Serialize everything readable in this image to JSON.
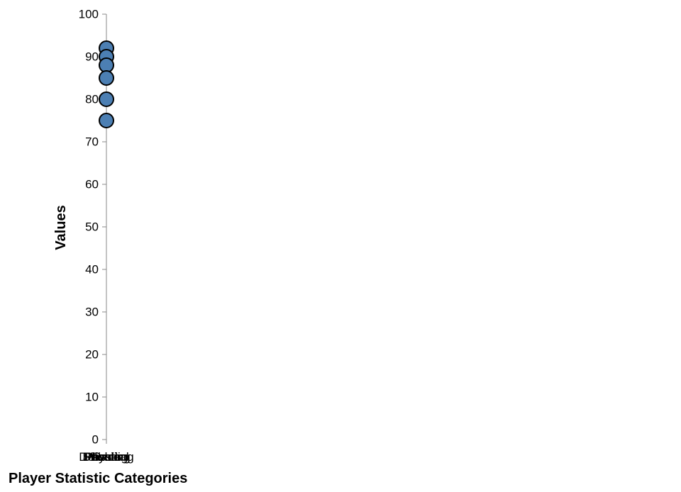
{
  "chart_data": {
    "type": "scatter",
    "title": "",
    "xlabel": "Player Statistic Categories",
    "ylabel": "Values",
    "categories": [
      "Dribbling",
      "Passing",
      "Physical",
      "Shooting",
      "Pace",
      "Defending"
    ],
    "series": [
      {
        "values": [
          {
            "category": "Dribbling",
            "value": 92
          },
          {
            "category": "Passing",
            "value": 90
          },
          {
            "category": "Physical",
            "value": 88
          },
          {
            "category": "Shooting",
            "value": 85
          },
          {
            "category": "Pace",
            "value": 80
          },
          {
            "category": "Defending",
            "value": 75
          }
        ]
      }
    ],
    "ylim": [
      0,
      100
    ],
    "yticks": [
      0,
      10,
      20,
      30,
      40,
      50,
      60,
      70,
      80,
      90,
      100
    ],
    "grid": false,
    "legend": "none",
    "colors": {
      "point_fill": "#4C7FB3",
      "point_stroke": "#000000",
      "axis": "#888888"
    }
  }
}
